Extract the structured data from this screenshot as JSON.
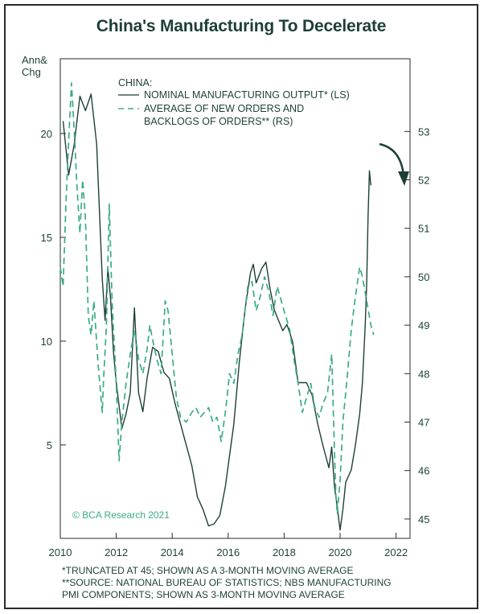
{
  "title": "China's Manufacturing To Decelerate",
  "chart_data": {
    "type": "line",
    "left_axis": {
      "title_line1": "Ann&",
      "title_line2": "Chg",
      "ticks": [
        5,
        10,
        15,
        20
      ],
      "ylim": [
        0.5,
        23.6
      ]
    },
    "right_axis": {
      "ticks": [
        45,
        46,
        47,
        48,
        49,
        50,
        51,
        52,
        53
      ],
      "ylim": [
        44.6,
        54.5
      ]
    },
    "x_axis": {
      "ticks": [
        "2010",
        "2012",
        "2014",
        "2016",
        "2018",
        "2020",
        "2022"
      ],
      "xlim": [
        2010,
        2022.5
      ]
    },
    "legend": {
      "header": "CHINA:",
      "line1": "NOMINAL MANUFACTURING OUTPUT* (LS)",
      "line2a": "AVERAGE OF NEW ORDERS AND",
      "line2b": "BACKLOGS OF ORDERS** (RS)"
    },
    "series": [
      {
        "name": "NOMINAL MANUFACTURING OUTPUT* (LS)",
        "axis": "left",
        "style": "solid",
        "points": [
          [
            2010.1,
            20.6
          ],
          [
            2010.3,
            18.0
          ],
          [
            2010.5,
            19.5
          ],
          [
            2010.7,
            21.8
          ],
          [
            2010.9,
            21.1
          ],
          [
            2011.1,
            21.9
          ],
          [
            2011.3,
            19.5
          ],
          [
            2011.5,
            13.0
          ],
          [
            2011.6,
            11.0
          ],
          [
            2011.7,
            13.5
          ],
          [
            2011.8,
            12.0
          ],
          [
            2011.9,
            9.5
          ],
          [
            2012.0,
            8.0
          ],
          [
            2012.2,
            5.8
          ],
          [
            2012.35,
            6.5
          ],
          [
            2012.5,
            7.5
          ],
          [
            2012.65,
            11.6
          ],
          [
            2012.8,
            7.5
          ],
          [
            2012.95,
            6.6
          ],
          [
            2013.1,
            8.2
          ],
          [
            2013.3,
            9.7
          ],
          [
            2013.5,
            9.5
          ],
          [
            2013.7,
            8.5
          ],
          [
            2013.9,
            8.2
          ],
          [
            2014.1,
            7.0
          ],
          [
            2014.3,
            6.0
          ],
          [
            2014.5,
            5.0
          ],
          [
            2014.7,
            4.0
          ],
          [
            2014.9,
            2.5
          ],
          [
            2015.1,
            1.9
          ],
          [
            2015.3,
            1.1
          ],
          [
            2015.5,
            1.2
          ],
          [
            2015.7,
            1.6
          ],
          [
            2015.9,
            3.0
          ],
          [
            2016.2,
            6.0
          ],
          [
            2016.4,
            9.0
          ],
          [
            2016.6,
            11.5
          ],
          [
            2016.8,
            13.3
          ],
          [
            2016.9,
            13.7
          ],
          [
            2017.0,
            12.8
          ],
          [
            2017.2,
            13.5
          ],
          [
            2017.35,
            13.8
          ],
          [
            2017.5,
            12.5
          ],
          [
            2017.65,
            11.5
          ],
          [
            2017.8,
            11.0
          ],
          [
            2017.95,
            10.5
          ],
          [
            2018.1,
            10.8
          ],
          [
            2018.3,
            10.0
          ],
          [
            2018.5,
            8.0
          ],
          [
            2018.8,
            8.0
          ],
          [
            2019.0,
            7.4
          ],
          [
            2019.2,
            6.0
          ],
          [
            2019.4,
            4.9
          ],
          [
            2019.6,
            3.9
          ],
          [
            2019.7,
            4.9
          ],
          [
            2019.8,
            3.0
          ],
          [
            2019.92,
            1.8
          ],
          [
            2019.97,
            1.2
          ],
          [
            2020.0,
            0.9
          ],
          [
            2020.1,
            1.9
          ],
          [
            2020.2,
            3.2
          ],
          [
            2020.4,
            3.8
          ],
          [
            2020.55,
            5.0
          ],
          [
            2020.7,
            6.5
          ],
          [
            2020.8,
            8.0
          ],
          [
            2020.9,
            10.8
          ],
          [
            2020.95,
            12.8
          ],
          [
            2021.0,
            16.0
          ],
          [
            2021.05,
            18.2
          ],
          [
            2021.1,
            17.5
          ]
        ]
      },
      {
        "name": "AVERAGE OF NEW ORDERS AND BACKLOGS OF ORDERS** (RS)",
        "axis": "right",
        "style": "dashed",
        "points": [
          [
            2010.0,
            50.2
          ],
          [
            2010.1,
            49.8
          ],
          [
            2010.2,
            51.5
          ],
          [
            2010.3,
            52.8
          ],
          [
            2010.4,
            54.0
          ],
          [
            2010.5,
            53.0
          ],
          [
            2010.6,
            51.8
          ],
          [
            2010.7,
            50.9
          ],
          [
            2010.8,
            52.0
          ],
          [
            2010.9,
            51.2
          ],
          [
            2011.0,
            49.2
          ],
          [
            2011.1,
            48.8
          ],
          [
            2011.2,
            49.5
          ],
          [
            2011.35,
            48.2
          ],
          [
            2011.5,
            47.2
          ],
          [
            2011.55,
            47.9
          ],
          [
            2011.65,
            49.0
          ],
          [
            2011.75,
            51.5
          ],
          [
            2011.85,
            49.5
          ],
          [
            2012.0,
            47.8
          ],
          [
            2012.1,
            46.2
          ],
          [
            2012.2,
            47.0
          ],
          [
            2012.35,
            47.8
          ],
          [
            2012.5,
            48.4
          ],
          [
            2012.65,
            48.9
          ],
          [
            2012.8,
            48.3
          ],
          [
            2012.95,
            48.0
          ],
          [
            2013.1,
            48.5
          ],
          [
            2013.2,
            49.0
          ],
          [
            2013.3,
            48.7
          ],
          [
            2013.45,
            48.3
          ],
          [
            2013.6,
            48.0
          ],
          [
            2013.75,
            49.5
          ],
          [
            2013.85,
            49.3
          ],
          [
            2014.0,
            48.4
          ],
          [
            2014.15,
            47.5
          ],
          [
            2014.3,
            47.1
          ],
          [
            2014.5,
            47.0
          ],
          [
            2014.7,
            47.2
          ],
          [
            2014.85,
            47.3
          ],
          [
            2015.0,
            47.1
          ],
          [
            2015.15,
            47.2
          ],
          [
            2015.3,
            47.3
          ],
          [
            2015.45,
            47.0
          ],
          [
            2015.6,
            47.1
          ],
          [
            2015.75,
            46.6
          ],
          [
            2015.9,
            47.2
          ],
          [
            2016.05,
            48.0
          ],
          [
            2016.2,
            47.8
          ],
          [
            2016.35,
            48.4
          ],
          [
            2016.5,
            48.8
          ],
          [
            2016.7,
            49.8
          ],
          [
            2016.85,
            49.9
          ],
          [
            2017.0,
            49.3
          ],
          [
            2017.15,
            49.6
          ],
          [
            2017.3,
            50.0
          ],
          [
            2017.45,
            49.7
          ],
          [
            2017.6,
            49.2
          ],
          [
            2017.75,
            49.8
          ],
          [
            2017.9,
            49.5
          ],
          [
            2018.05,
            49.2
          ],
          [
            2018.2,
            48.9
          ],
          [
            2018.35,
            48.3
          ],
          [
            2018.5,
            47.8
          ],
          [
            2018.65,
            47.2
          ],
          [
            2018.8,
            47.5
          ],
          [
            2018.95,
            47.8
          ],
          [
            2019.1,
            47.3
          ],
          [
            2019.25,
            47.1
          ],
          [
            2019.4,
            47.4
          ],
          [
            2019.55,
            47.6
          ],
          [
            2019.7,
            48.4
          ],
          [
            2019.8,
            46.4
          ],
          [
            2019.85,
            45.5
          ],
          [
            2019.9,
            45.1
          ],
          [
            2020.0,
            45.8
          ],
          [
            2020.1,
            47.0
          ],
          [
            2020.25,
            47.9
          ],
          [
            2020.4,
            48.9
          ],
          [
            2020.55,
            49.6
          ],
          [
            2020.7,
            50.2
          ],
          [
            2020.8,
            50.0
          ],
          [
            2020.95,
            49.5
          ],
          [
            2021.1,
            49.0
          ],
          [
            2021.2,
            48.8
          ]
        ]
      }
    ],
    "annotations": {
      "watermark": "© BCA Research 2021"
    },
    "grid": false
  },
  "footnotes": {
    "line1": "*TRUNCATED AT 45; SHOWN AS A 3-MONTH MOVING AVERAGE",
    "line2": "**SOURCE: NATIONAL BUREAU OF STATISTICS; NBS MANUFACTURING",
    "line3": "PMI COMPONENTS; SHOWN AS 3-MONTH MOVING AVERAGE"
  }
}
